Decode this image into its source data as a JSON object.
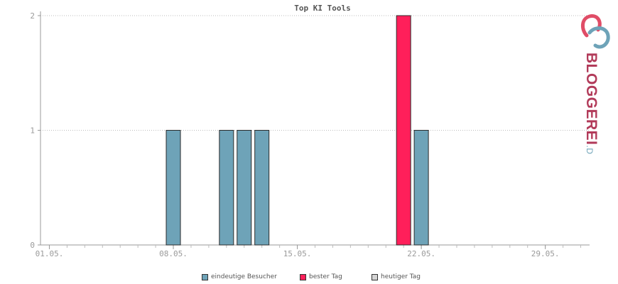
{
  "chart_data": {
    "type": "bar",
    "title": "Top KI Tools",
    "x": [
      1,
      2,
      3,
      4,
      5,
      6,
      7,
      8,
      9,
      10,
      11,
      12,
      13,
      14,
      15,
      16,
      17,
      18,
      19,
      20,
      21,
      22,
      23,
      24,
      25,
      26,
      27,
      28,
      29,
      30,
      31
    ],
    "xticks": [
      {
        "day": 1,
        "label": "01.05."
      },
      {
        "day": 8,
        "label": "08.05."
      },
      {
        "day": 15,
        "label": "15.05."
      },
      {
        "day": 22,
        "label": "22.05."
      },
      {
        "day": 29,
        "label": "29.05."
      }
    ],
    "yticks": [
      0,
      1,
      2
    ],
    "ylim": [
      0,
      2
    ],
    "grid": true,
    "legend_position": "bottom",
    "series": [
      {
        "name": "eindeutige Besucher",
        "color": "#6ea3b8",
        "points": [
          {
            "day": 8,
            "value": 1
          },
          {
            "day": 11,
            "value": 1
          },
          {
            "day": 12,
            "value": 1
          },
          {
            "day": 13,
            "value": 1
          },
          {
            "day": 22,
            "value": 1
          }
        ]
      },
      {
        "name": "bester Tag",
        "color": "#ff1f5a",
        "points": [
          {
            "day": 21,
            "value": 2
          }
        ]
      },
      {
        "name": "heutiger Tag",
        "color": "#d3d3d3",
        "points": []
      }
    ]
  },
  "logo": {
    "text": "BLOGGEREI",
    "suffix": ".DE"
  }
}
